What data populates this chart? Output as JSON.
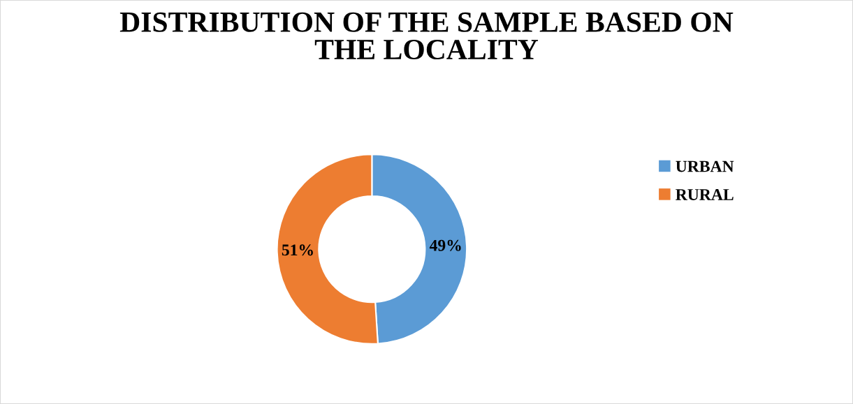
{
  "chart_data": {
    "type": "donut",
    "title": "DISTRIBUTION OF THE SAMPLE BASED ON\nTHE LOCALITY",
    "categories": [
      "URBAN",
      "RURAL"
    ],
    "values": [
      49,
      51
    ],
    "colors": [
      "#5b9bd5",
      "#ed7d31"
    ],
    "value_labels": [
      "49%",
      "51%"
    ],
    "legend": "right"
  }
}
